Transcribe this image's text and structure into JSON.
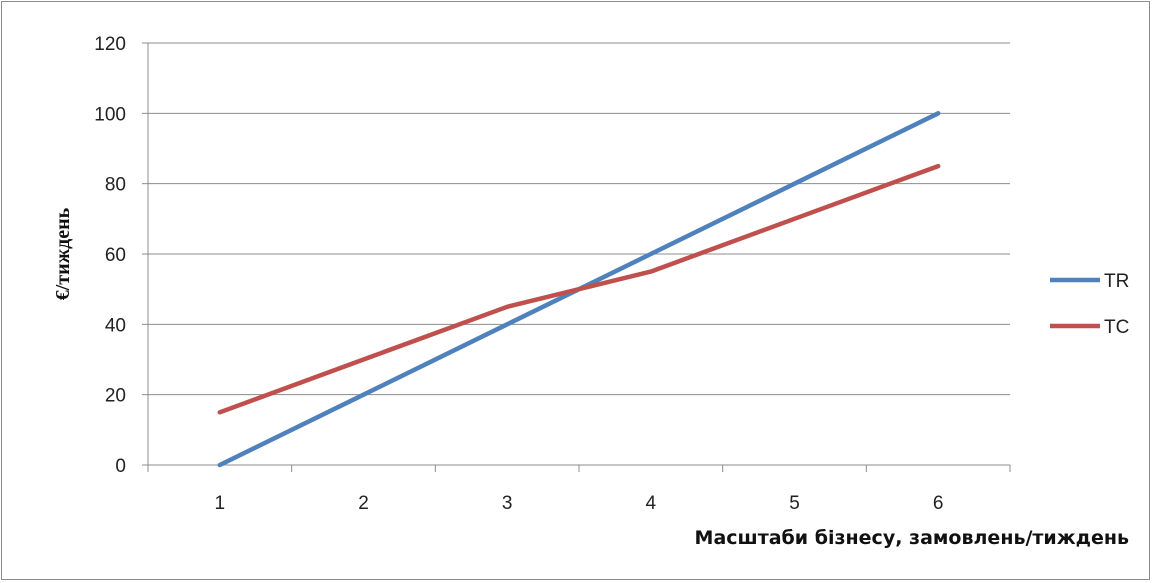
{
  "chart_data": {
    "type": "line",
    "title": "",
    "x": [
      1,
      2,
      3,
      4,
      5,
      6
    ],
    "x_tick_labels": [
      "1",
      "2",
      "3",
      "4",
      "5",
      "6"
    ],
    "xlabel": "Масштаби бізнесу, замовлень/тиждень",
    "ylabel": "€/тиждень",
    "ylim": [
      0,
      120
    ],
    "y_ticks": [
      0,
      20,
      40,
      60,
      80,
      100,
      120
    ],
    "y_tick_labels": [
      "0",
      "20",
      "40",
      "60",
      "80",
      "100",
      "120"
    ],
    "grid": true,
    "legend_position": "right",
    "series": [
      {
        "name": "TR",
        "color": "#4f81bd",
        "values": [
          0,
          20,
          40,
          60,
          80,
          100
        ]
      },
      {
        "name": "TC",
        "color": "#c0504d",
        "values": [
          15,
          30,
          45,
          55,
          70,
          85
        ]
      }
    ]
  }
}
